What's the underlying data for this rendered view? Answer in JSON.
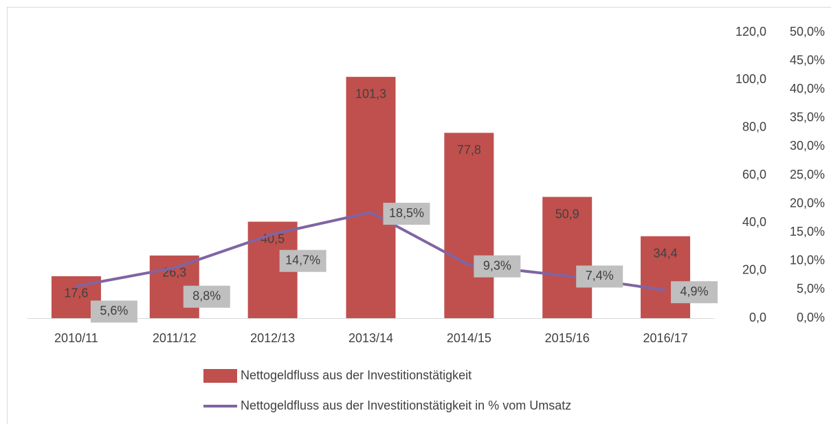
{
  "chart_data": {
    "type": "bar",
    "categories": [
      "2010/11",
      "2011/12",
      "2012/13",
      "2013/14",
      "2014/15",
      "2015/16",
      "2016/17"
    ],
    "series": [
      {
        "name": "Nettogeldfluss aus der Investitionstätigkeit",
        "color": "#c0504d",
        "type": "bar",
        "values": [
          17.6,
          26.3,
          40.5,
          101.3,
          77.8,
          50.9,
          34.4
        ],
        "value_labels": [
          "17,6",
          "26,3",
          "40,5",
          "101,3",
          "77,8",
          "50,9",
          "34,4"
        ]
      },
      {
        "name": "Nettogeldfluss aus der Investitionstätigkeit in % vom Umsatz",
        "color": "#8064a2",
        "type": "line",
        "axis": "y2",
        "values": [
          5.6,
          8.8,
          14.7,
          18.5,
          9.3,
          7.4,
          4.9
        ],
        "value_labels": [
          "5,6%",
          "8,8%",
          "14,7%",
          "18,5%",
          "9,3%",
          "7,4%",
          "4,9%"
        ]
      }
    ],
    "ylim": [
      0,
      120
    ],
    "yticks": [
      {
        "value": 0,
        "label": "0,0"
      },
      {
        "value": 20,
        "label": "20,0"
      },
      {
        "value": 40,
        "label": "40,0"
      },
      {
        "value": 60,
        "label": "60,0"
      },
      {
        "value": 80,
        "label": "80,0"
      },
      {
        "value": 100,
        "label": "100,0"
      },
      {
        "value": 120,
        "label": "120,0"
      }
    ],
    "y2lim": [
      0,
      50
    ],
    "y2ticks": [
      {
        "value": 0,
        "label": "0,0%"
      },
      {
        "value": 5,
        "label": "5,0%"
      },
      {
        "value": 10,
        "label": "10,0%"
      },
      {
        "value": 15,
        "label": "15,0%"
      },
      {
        "value": 20,
        "label": "20,0%"
      },
      {
        "value": 25,
        "label": "25,0%"
      },
      {
        "value": 30,
        "label": "30,0%"
      },
      {
        "value": 35,
        "label": "35,0%"
      },
      {
        "value": 40,
        "label": "40,0%"
      },
      {
        "value": 45,
        "label": "45,0%"
      },
      {
        "value": 50,
        "label": "50,0%"
      }
    ],
    "grid": false,
    "legend": "bottom"
  }
}
